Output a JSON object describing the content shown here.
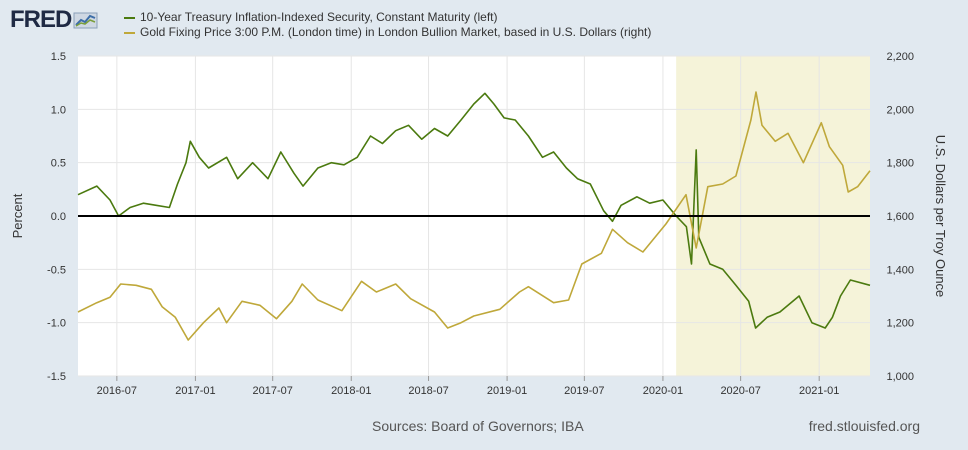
{
  "brand": {
    "name": "FRED"
  },
  "legend": [
    {
      "label": "10-Year Treasury Inflation-Indexed Security, Constant Maturity (left)",
      "color": "#4b7a0f"
    },
    {
      "label": "Gold Fixing Price 3:00 P.M. (London time) in London Bullion Market, based in U.S. Dollars (right)",
      "color": "#bfa83a"
    }
  ],
  "footer": {
    "sources": "Sources: Board of Governors; IBA",
    "site": "fred.stlouisfed.org"
  },
  "chart_data": {
    "type": "line",
    "title": "",
    "x_ticks": [
      "2016-07",
      "2017-01",
      "2017-07",
      "2018-01",
      "2018-07",
      "2019-01",
      "2019-07",
      "2020-01",
      "2020-07",
      "2021-01"
    ],
    "x_range": [
      "2016-04-01",
      "2021-04-30"
    ],
    "y_left": {
      "label": "Percent",
      "range": [
        -1.5,
        1.5
      ],
      "ticks": [
        "-1.5",
        "-1.0",
        "-0.5",
        "0.0",
        "0.5",
        "1.0",
        "1.5"
      ]
    },
    "y_right": {
      "label": "U.S. Dollars per Troy Ounce",
      "range": [
        1000,
        2200
      ],
      "ticks": [
        "1,000",
        "1,200",
        "1,400",
        "1,600",
        "1,800",
        "2,000",
        "2,200"
      ]
    },
    "recession_shading": {
      "start": "2020-02-01",
      "end": "2021-04-30",
      "color": "#f5f3d9"
    },
    "zero_line": 0,
    "grid": true,
    "series": [
      {
        "name": "10-Year Treasury Inflation-Indexed Security, Constant Maturity (left)",
        "axis": "left",
        "color": "#4b7a0f",
        "points": [
          [
            "2016-04-01",
            0.2
          ],
          [
            "2016-05-15",
            0.28
          ],
          [
            "2016-06-15",
            0.15
          ],
          [
            "2016-07-05",
            0.0
          ],
          [
            "2016-08-01",
            0.08
          ],
          [
            "2016-09-01",
            0.12
          ],
          [
            "2016-10-01",
            0.1
          ],
          [
            "2016-11-01",
            0.08
          ],
          [
            "2016-11-20",
            0.3
          ],
          [
            "2016-12-10",
            0.5
          ],
          [
            "2016-12-20",
            0.7
          ],
          [
            "2017-01-10",
            0.55
          ],
          [
            "2017-02-01",
            0.45
          ],
          [
            "2017-03-15",
            0.55
          ],
          [
            "2017-04-10",
            0.35
          ],
          [
            "2017-05-15",
            0.5
          ],
          [
            "2017-06-20",
            0.35
          ],
          [
            "2017-07-20",
            0.6
          ],
          [
            "2017-08-20",
            0.4
          ],
          [
            "2017-09-10",
            0.28
          ],
          [
            "2017-10-15",
            0.45
          ],
          [
            "2017-11-15",
            0.5
          ],
          [
            "2017-12-15",
            0.48
          ],
          [
            "2018-01-15",
            0.55
          ],
          [
            "2018-02-15",
            0.75
          ],
          [
            "2018-03-15",
            0.68
          ],
          [
            "2018-04-15",
            0.8
          ],
          [
            "2018-05-15",
            0.85
          ],
          [
            "2018-06-15",
            0.72
          ],
          [
            "2018-07-15",
            0.82
          ],
          [
            "2018-08-15",
            0.75
          ],
          [
            "2018-09-15",
            0.9
          ],
          [
            "2018-10-15",
            1.05
          ],
          [
            "2018-11-10",
            1.15
          ],
          [
            "2018-12-01",
            1.05
          ],
          [
            "2018-12-25",
            0.92
          ],
          [
            "2019-01-20",
            0.9
          ],
          [
            "2019-02-20",
            0.75
          ],
          [
            "2019-03-25",
            0.55
          ],
          [
            "2019-04-20",
            0.6
          ],
          [
            "2019-05-20",
            0.45
          ],
          [
            "2019-06-15",
            0.35
          ],
          [
            "2019-07-15",
            0.3
          ],
          [
            "2019-08-15",
            0.05
          ],
          [
            "2019-09-05",
            -0.05
          ],
          [
            "2019-09-25",
            0.1
          ],
          [
            "2019-11-01",
            0.18
          ],
          [
            "2019-12-01",
            0.12
          ],
          [
            "2020-01-01",
            0.15
          ],
          [
            "2020-02-01",
            0.0
          ],
          [
            "2020-02-25",
            -0.1
          ],
          [
            "2020-03-08",
            -0.45
          ],
          [
            "2020-03-19",
            0.62
          ],
          [
            "2020-03-25",
            -0.2
          ],
          [
            "2020-04-20",
            -0.45
          ],
          [
            "2020-05-20",
            -0.5
          ],
          [
            "2020-06-20",
            -0.65
          ],
          [
            "2020-07-20",
            -0.8
          ],
          [
            "2020-08-05",
            -1.05
          ],
          [
            "2020-09-01",
            -0.95
          ],
          [
            "2020-10-01",
            -0.9
          ],
          [
            "2020-11-15",
            -0.75
          ],
          [
            "2020-12-15",
            -1.0
          ],
          [
            "2021-01-15",
            -1.05
          ],
          [
            "2021-02-01",
            -0.95
          ],
          [
            "2021-02-20",
            -0.75
          ],
          [
            "2021-03-15",
            -0.6
          ],
          [
            "2021-04-30",
            -0.65
          ]
        ]
      },
      {
        "name": "Gold Fixing Price 3:00 P.M. (London time) in London Bullion Market, based in U.S. Dollars (right)",
        "axis": "right",
        "color": "#bfa83a",
        "points": [
          [
            "2016-04-01",
            1240
          ],
          [
            "2016-05-15",
            1275
          ],
          [
            "2016-06-15",
            1295
          ],
          [
            "2016-07-10",
            1345
          ],
          [
            "2016-08-15",
            1340
          ],
          [
            "2016-09-20",
            1325
          ],
          [
            "2016-10-15",
            1260
          ],
          [
            "2016-11-15",
            1220
          ],
          [
            "2016-12-15",
            1135
          ],
          [
            "2017-01-20",
            1200
          ],
          [
            "2017-02-25",
            1255
          ],
          [
            "2017-03-15",
            1200
          ],
          [
            "2017-04-20",
            1280
          ],
          [
            "2017-06-01",
            1265
          ],
          [
            "2017-07-10",
            1215
          ],
          [
            "2017-08-15",
            1280
          ],
          [
            "2017-09-08",
            1345
          ],
          [
            "2017-10-15",
            1285
          ],
          [
            "2017-12-10",
            1245
          ],
          [
            "2018-01-25",
            1355
          ],
          [
            "2018-03-01",
            1315
          ],
          [
            "2018-04-15",
            1345
          ],
          [
            "2018-05-20",
            1290
          ],
          [
            "2018-07-15",
            1240
          ],
          [
            "2018-08-15",
            1180
          ],
          [
            "2018-09-15",
            1200
          ],
          [
            "2018-10-15",
            1225
          ],
          [
            "2018-12-15",
            1250
          ],
          [
            "2019-01-30",
            1315
          ],
          [
            "2019-02-20",
            1335
          ],
          [
            "2019-04-20",
            1275
          ],
          [
            "2019-05-25",
            1285
          ],
          [
            "2019-06-25",
            1420
          ],
          [
            "2019-08-10",
            1460
          ],
          [
            "2019-09-05",
            1550
          ],
          [
            "2019-10-10",
            1500
          ],
          [
            "2019-11-15",
            1465
          ],
          [
            "2020-01-08",
            1570
          ],
          [
            "2020-02-24",
            1680
          ],
          [
            "2020-03-19",
            1480
          ],
          [
            "2020-04-15",
            1710
          ],
          [
            "2020-05-20",
            1720
          ],
          [
            "2020-06-20",
            1750
          ],
          [
            "2020-07-25",
            1960
          ],
          [
            "2020-08-06",
            2065
          ],
          [
            "2020-08-20",
            1940
          ],
          [
            "2020-09-20",
            1880
          ],
          [
            "2020-10-20",
            1910
          ],
          [
            "2020-11-25",
            1800
          ],
          [
            "2021-01-06",
            1950
          ],
          [
            "2021-01-25",
            1860
          ],
          [
            "2021-02-25",
            1790
          ],
          [
            "2021-03-10",
            1690
          ],
          [
            "2021-04-01",
            1710
          ],
          [
            "2021-04-30",
            1770
          ]
        ]
      }
    ]
  }
}
